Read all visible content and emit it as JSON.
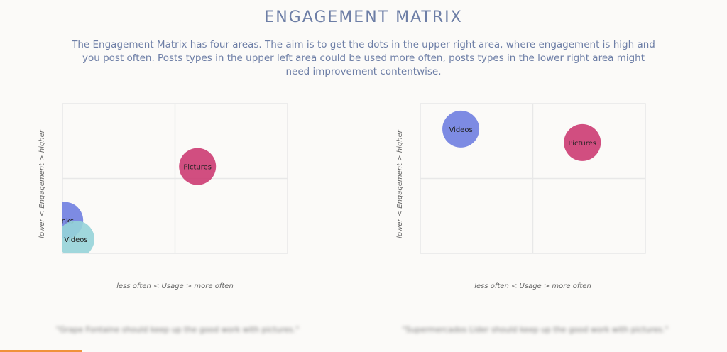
{
  "title": "ENGAGEMENT MATRIX",
  "description": "The Engagement Matrix has four areas. The aim is to get the dots in the upper right area, where engagement is high and you post often. Posts types in the upper left area could be used more often, posts types in the lower right area might need improvement contentwise.",
  "chart_data": [
    {
      "type": "scatter",
      "xlabel": "less often < Usage > more often",
      "ylabel": "lower < Engagement > higher",
      "xlim": [
        0,
        1
      ],
      "ylim": [
        0,
        1
      ],
      "grid": "quadrants",
      "points": [
        {
          "label": "Pictures",
          "x": 0.6,
          "y": 0.58,
          "color": "#cc3b72"
        },
        {
          "label": "Links",
          "x": 0.01,
          "y": 0.22,
          "color": "#6f7ee0"
        },
        {
          "label": "Videos",
          "x": 0.06,
          "y": 0.095,
          "color": "#96d3d8"
        }
      ],
      "quote": "\"Grape Fontaine should keep up the good work with pictures.\""
    },
    {
      "type": "scatter",
      "xlabel": "less often < Usage > more often",
      "ylabel": "lower < Engagement > higher",
      "xlim": [
        0,
        1
      ],
      "ylim": [
        0,
        1
      ],
      "grid": "quadrants",
      "points": [
        {
          "label": "Videos",
          "x": 0.18,
          "y": 0.83,
          "color": "#6f7ee0"
        },
        {
          "label": "Pictures",
          "x": 0.72,
          "y": 0.74,
          "color": "#cc3b72"
        }
      ],
      "quote": "\"Supermercados Lider should keep up the good work with pictures.\""
    }
  ]
}
